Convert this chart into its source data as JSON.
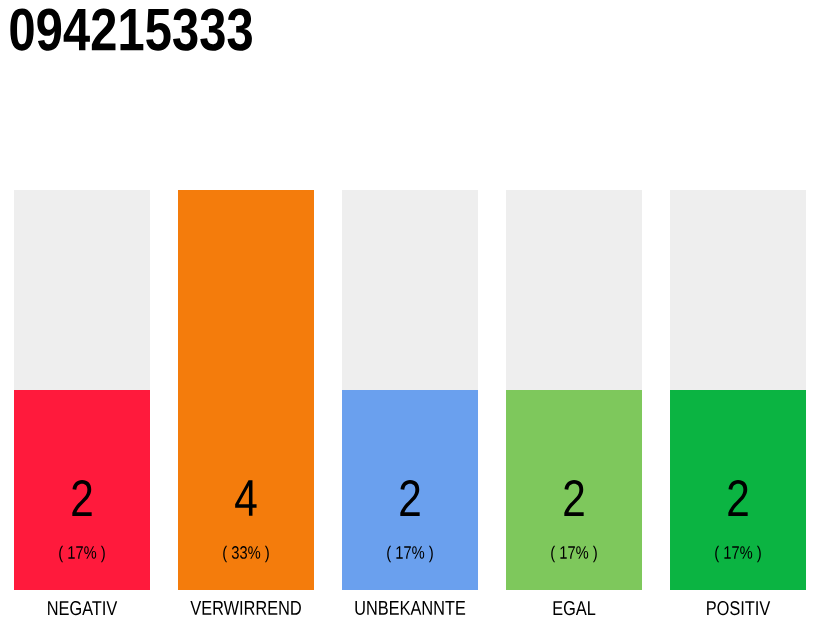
{
  "chart_data": {
    "type": "bar",
    "title": "094215333",
    "categories": [
      "NEGATIV",
      "VERWIRREND",
      "UNBEKANNTE",
      "EGAL",
      "POSITIV"
    ],
    "values": [
      2,
      4,
      2,
      2,
      2
    ],
    "colors": [
      "#ff1a3c",
      "#f47c0c",
      "#6aa0ee",
      "#7ec85c",
      "#0bb442"
    ],
    "data_labels": true,
    "annotations": [
      "( 17% )",
      "( 33% )",
      "( 17% )",
      "( 17% )",
      "( 17% )"
    ]
  }
}
